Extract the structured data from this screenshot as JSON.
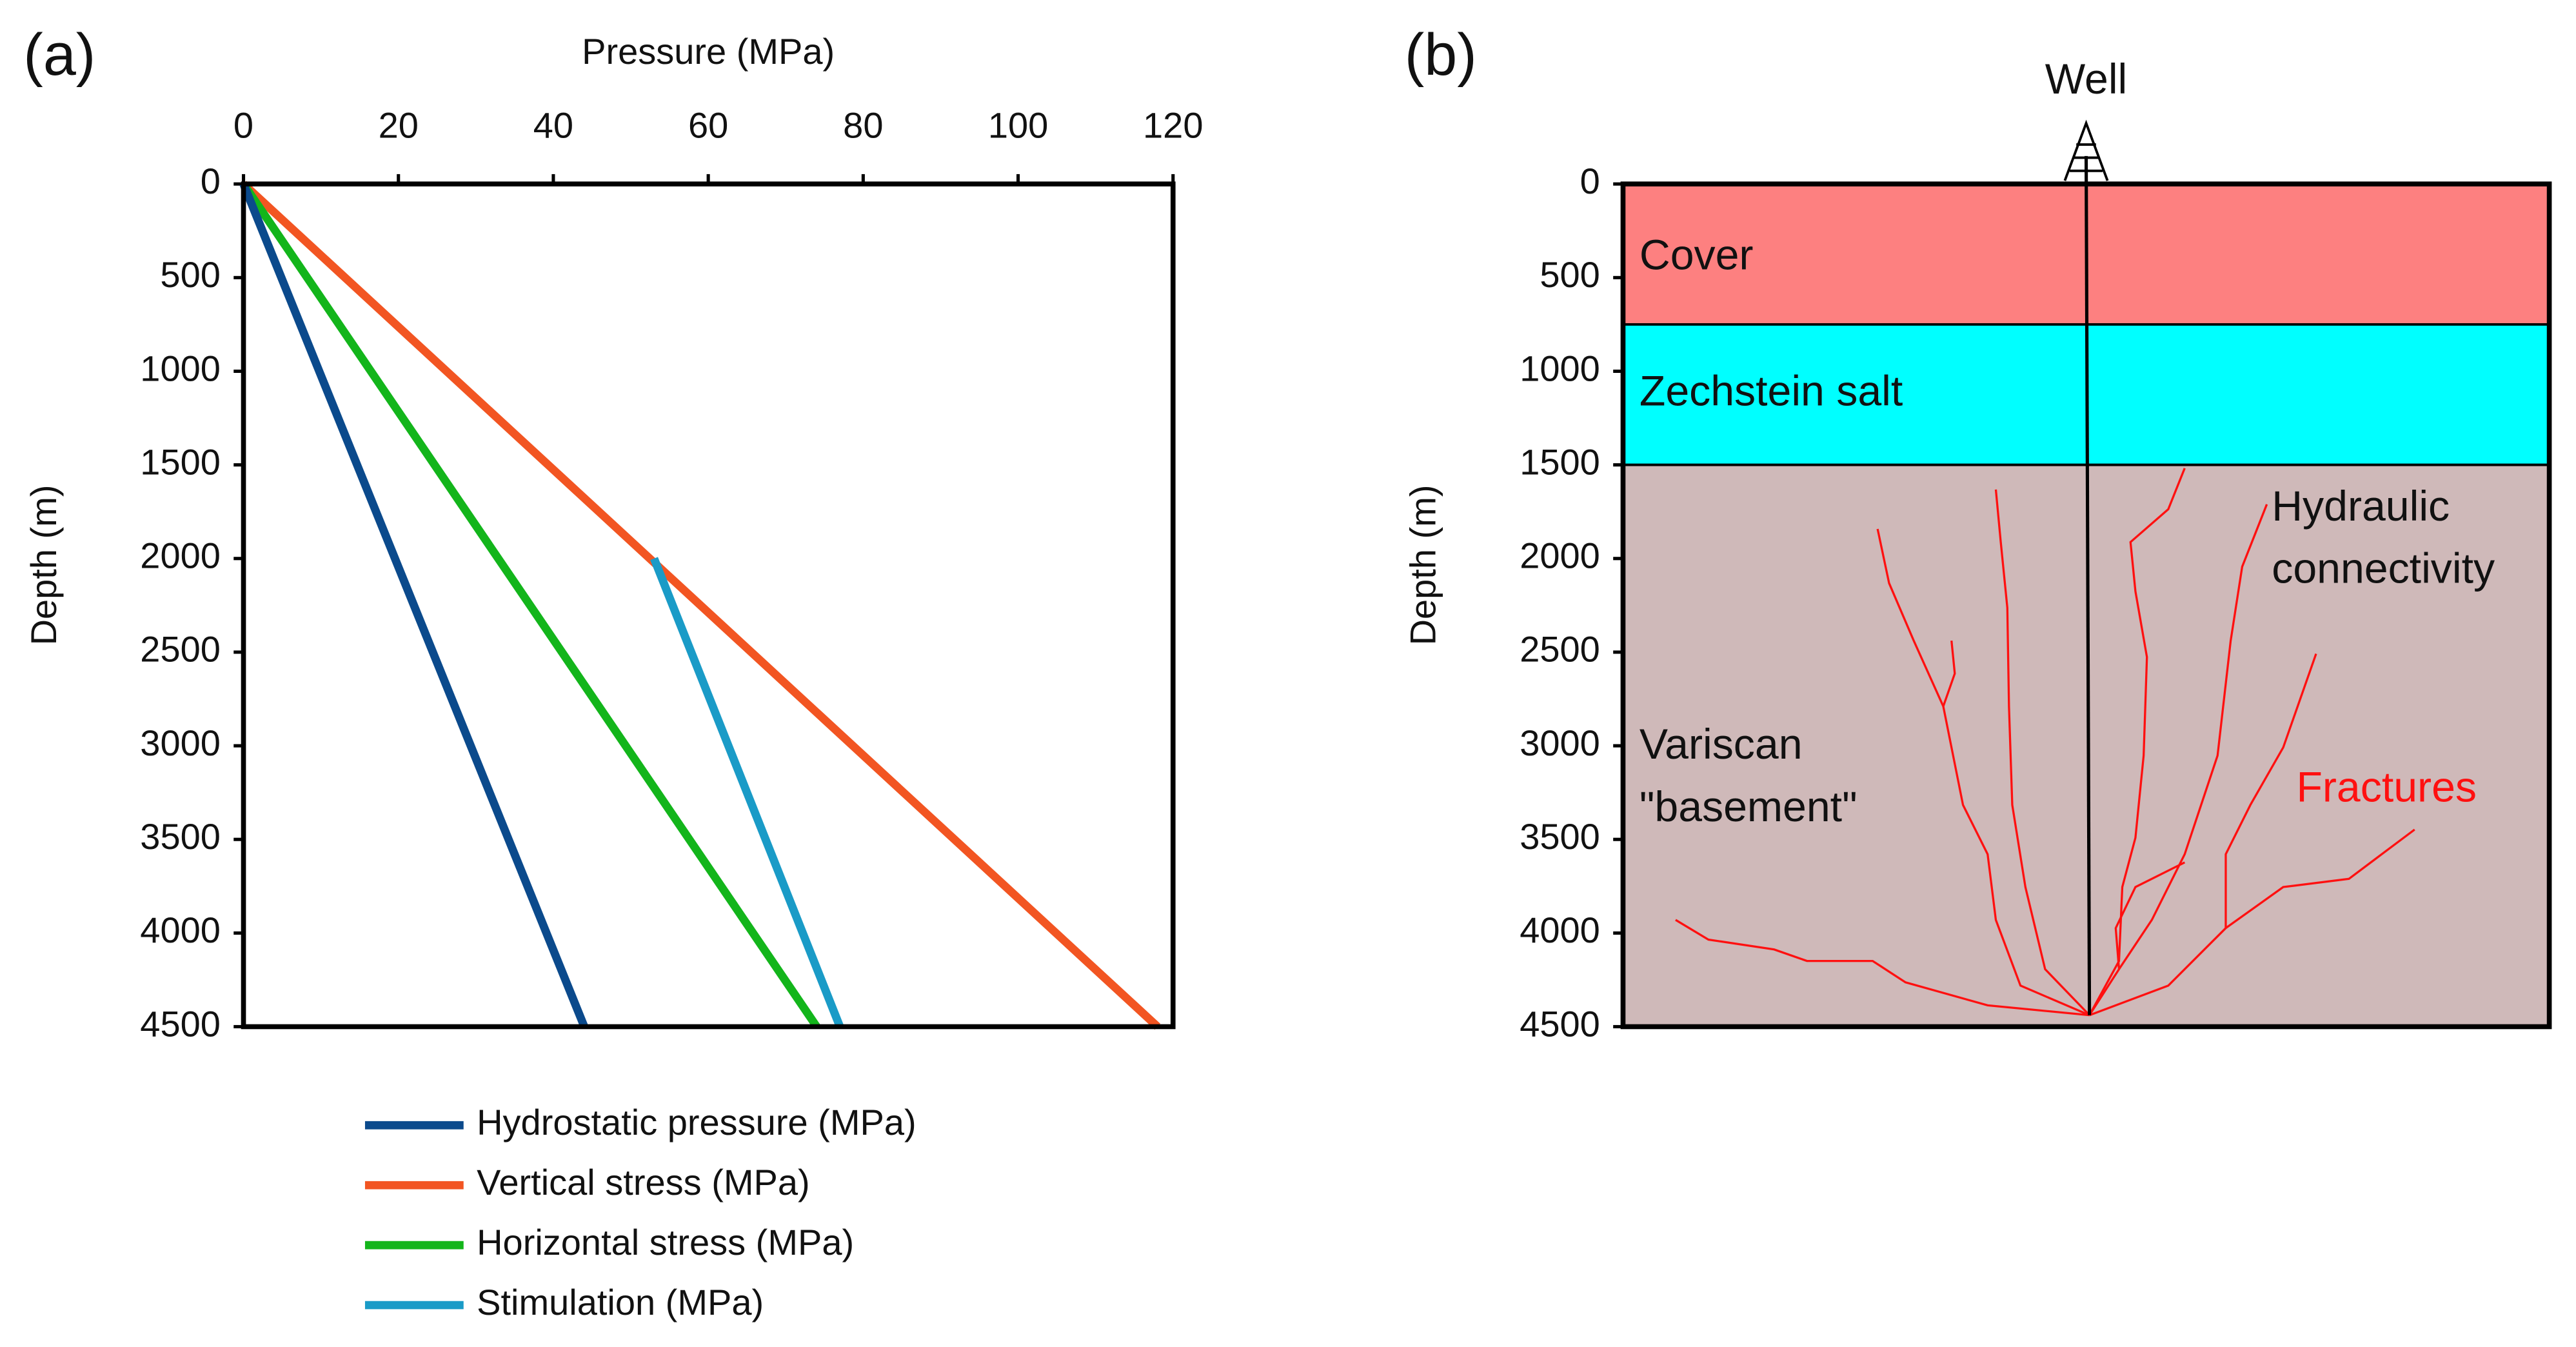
{
  "chart_data": [
    {
      "type": "line",
      "panel": "(a)",
      "xlabel": "Pressure (MPa)",
      "ylabel": "Depth (m)",
      "xlim": [
        0,
        120
      ],
      "xticks": [
        0,
        20,
        40,
        60,
        80,
        100,
        120
      ],
      "ylim": [
        0,
        4500
      ],
      "yticks": [
        0,
        500,
        1000,
        1500,
        2000,
        2500,
        3000,
        3500,
        4000,
        4500
      ],
      "y_inverted": true,
      "series": [
        {
          "name": "Hydrostatic pressure (MPa)",
          "color": "#0b4a8c",
          "depth": [
            0,
            4500
          ],
          "values": [
            0,
            44
          ]
        },
        {
          "name": "Vertical stress (MPa)",
          "color": "#f25522",
          "depth": [
            0,
            4500
          ],
          "values": [
            0,
            118
          ]
        },
        {
          "name": "Horizontal stress (MPa)",
          "color": "#13b51b",
          "depth": [
            0,
            4500
          ],
          "values": [
            0,
            74
          ]
        },
        {
          "name": "Stimulation (MPa)",
          "color": "#1a9bc7",
          "depth": [
            2000,
            4500
          ],
          "values": [
            53,
            77
          ]
        }
      ]
    },
    {
      "type": "layers",
      "panel": "(b)",
      "ylabel": "Depth (m)",
      "ylim": [
        0,
        4500
      ],
      "yticks": [
        0,
        500,
        1000,
        1500,
        2000,
        2500,
        3000,
        3500,
        4000,
        4500
      ],
      "y_inverted": true,
      "well": "Well",
      "layers": [
        {
          "name": "Cover",
          "color": "#fd8080",
          "top": 0,
          "bottom": 750
        },
        {
          "name": "Zechstein salt",
          "color": "#00ffff",
          "top": 750,
          "bottom": 1500
        },
        {
          "name": [
            "Variscan",
            "\"basement\""
          ],
          "color": "#cfb9b9",
          "top": 1500,
          "bottom": 4500
        }
      ],
      "annotations": [
        [
          "Hydraulic",
          "connectivity"
        ],
        "Fractures"
      ]
    }
  ]
}
